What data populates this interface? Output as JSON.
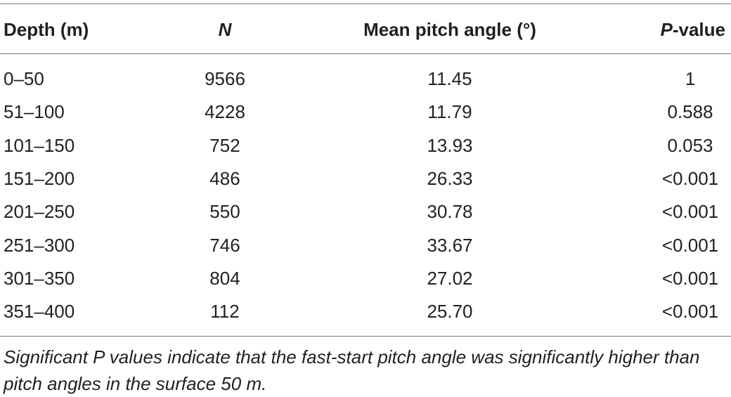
{
  "table": {
    "header": [
      "Depth (m)",
      "N",
      "Mean pitch angle (°)",
      "P-value"
    ],
    "rows": [
      [
        "0–50",
        "9566",
        "11.45",
        "1"
      ],
      [
        "51–100",
        "4228",
        "11.79",
        "0.588"
      ],
      [
        "101–150",
        "752",
        "13.93",
        "0.053"
      ],
      [
        "151–200",
        "486",
        "26.33",
        "<0.001"
      ],
      [
        "201–250",
        "550",
        "30.78",
        "<0.001"
      ],
      [
        "251–300",
        "746",
        "33.67",
        "<0.001"
      ],
      [
        "301–350",
        "804",
        "27.02",
        "<0.001"
      ],
      [
        "351–400",
        "112",
        "25.70",
        "<0.001"
      ]
    ],
    "footnote": "Significant P values indicate that the fast-start pitch angle was significantly higher than pitch angles in the surface 50 m."
  }
}
